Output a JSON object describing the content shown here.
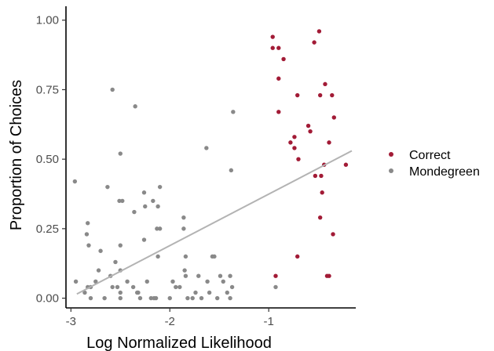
{
  "chart_data": {
    "type": "scatter",
    "title": "",
    "xlabel": "Log Normalized Likelihood",
    "ylabel": "Proportion of Choices",
    "xlim": [
      -3.05,
      -0.12
    ],
    "ylim": [
      -0.035,
      1.05
    ],
    "xticks": [
      -3,
      -2,
      -1
    ],
    "xtick_labels": [
      "-3",
      "-2",
      "-1"
    ],
    "yticks": [
      0,
      0.25,
      0.5,
      0.75,
      1
    ],
    "ytick_labels": [
      "0.00",
      "0.25",
      "0.50",
      "0.75",
      "1.00"
    ],
    "grid": false,
    "legend_position": "right",
    "trend_line": {
      "x": [
        -2.94,
        -0.16
      ],
      "y": [
        0.015,
        0.53
      ],
      "color": "#b3b3b3"
    },
    "series": [
      {
        "name": "Correct",
        "color": "#a21b36",
        "points": [
          {
            "x": -0.96,
            "y": 0.94
          },
          {
            "x": -0.96,
            "y": 0.9
          },
          {
            "x": -0.9,
            "y": 0.9
          },
          {
            "x": -0.85,
            "y": 0.86
          },
          {
            "x": -0.9,
            "y": 0.79
          },
          {
            "x": -0.9,
            "y": 0.67
          },
          {
            "x": -0.93,
            "y": 0.08
          },
          {
            "x": -0.78,
            "y": 0.56
          },
          {
            "x": -0.74,
            "y": 0.58
          },
          {
            "x": -0.74,
            "y": 0.54
          },
          {
            "x": -0.71,
            "y": 0.73
          },
          {
            "x": -0.7,
            "y": 0.5
          },
          {
            "x": -0.71,
            "y": 0.15
          },
          {
            "x": -0.6,
            "y": 0.62
          },
          {
            "x": -0.58,
            "y": 0.6
          },
          {
            "x": -0.54,
            "y": 0.92
          },
          {
            "x": -0.49,
            "y": 0.96
          },
          {
            "x": -0.53,
            "y": 0.44
          },
          {
            "x": -0.47,
            "y": 0.44
          },
          {
            "x": -0.48,
            "y": 0.73
          },
          {
            "x": -0.43,
            "y": 0.77
          },
          {
            "x": -0.44,
            "y": 0.48
          },
          {
            "x": -0.46,
            "y": 0.38
          },
          {
            "x": -0.48,
            "y": 0.29
          },
          {
            "x": -0.39,
            "y": 0.56
          },
          {
            "x": -0.41,
            "y": 0.08
          },
          {
            "x": -0.39,
            "y": 0.08
          },
          {
            "x": -0.36,
            "y": 0.73
          },
          {
            "x": -0.34,
            "y": 0.65
          },
          {
            "x": -0.35,
            "y": 0.23
          },
          {
            "x": -0.22,
            "y": 0.48
          }
        ]
      },
      {
        "name": "Mondegreen",
        "color": "#898989",
        "points": [
          {
            "x": -2.96,
            "y": 0.42
          },
          {
            "x": -2.95,
            "y": 0.06
          },
          {
            "x": -2.86,
            "y": 0.02
          },
          {
            "x": -2.83,
            "y": 0.27
          },
          {
            "x": -2.84,
            "y": 0.23
          },
          {
            "x": -2.82,
            "y": 0.19
          },
          {
            "x": -2.83,
            "y": 0.04
          },
          {
            "x": -2.8,
            "y": 0.04
          },
          {
            "x": -2.8,
            "y": 0.0
          },
          {
            "x": -2.75,
            "y": 0.06
          },
          {
            "x": -2.72,
            "y": 0.1
          },
          {
            "x": -2.7,
            "y": 0.17
          },
          {
            "x": -2.66,
            "y": 0.0
          },
          {
            "x": -2.63,
            "y": 0.4
          },
          {
            "x": -2.58,
            "y": 0.75
          },
          {
            "x": -2.6,
            "y": 0.08
          },
          {
            "x": -2.58,
            "y": 0.04
          },
          {
            "x": -2.53,
            "y": 0.04
          },
          {
            "x": -2.55,
            "y": 0.13
          },
          {
            "x": -2.5,
            "y": 0.52
          },
          {
            "x": -2.51,
            "y": 0.35
          },
          {
            "x": -2.48,
            "y": 0.35
          },
          {
            "x": -2.5,
            "y": 0.19
          },
          {
            "x": -2.5,
            "y": 0.1
          },
          {
            "x": -2.5,
            "y": 0.02
          },
          {
            "x": -2.5,
            "y": 0.0
          },
          {
            "x": -2.43,
            "y": 0.06
          },
          {
            "x": -2.35,
            "y": 0.69
          },
          {
            "x": -2.36,
            "y": 0.31
          },
          {
            "x": -2.37,
            "y": 0.04
          },
          {
            "x": -2.33,
            "y": 0.02
          },
          {
            "x": -2.3,
            "y": 0.0
          },
          {
            "x": -2.32,
            "y": 0.02
          },
          {
            "x": -2.26,
            "y": 0.38
          },
          {
            "x": -2.25,
            "y": 0.33
          },
          {
            "x": -2.26,
            "y": 0.21
          },
          {
            "x": -2.23,
            "y": 0.06
          },
          {
            "x": -2.19,
            "y": 0.0
          },
          {
            "x": -2.17,
            "y": 0.35
          },
          {
            "x": -2.12,
            "y": 0.33
          },
          {
            "x": -2.1,
            "y": 0.4
          },
          {
            "x": -2.13,
            "y": 0.25
          },
          {
            "x": -2.1,
            "y": 0.25
          },
          {
            "x": -2.12,
            "y": 0.15
          },
          {
            "x": -2.14,
            "y": 0.0
          },
          {
            "x": -2.16,
            "y": 0.0
          },
          {
            "x": -2.0,
            "y": 0.0
          },
          {
            "x": -1.97,
            "y": 0.06
          },
          {
            "x": -1.94,
            "y": 0.04
          },
          {
            "x": -1.9,
            "y": 0.04
          },
          {
            "x": -1.86,
            "y": 0.29
          },
          {
            "x": -1.86,
            "y": 0.25
          },
          {
            "x": -1.84,
            "y": 0.15
          },
          {
            "x": -1.85,
            "y": 0.1
          },
          {
            "x": -1.84,
            "y": 0.08
          },
          {
            "x": -1.82,
            "y": 0.0
          },
          {
            "x": -1.77,
            "y": 0.0
          },
          {
            "x": -1.74,
            "y": 0.02
          },
          {
            "x": -1.71,
            "y": 0.08
          },
          {
            "x": -1.68,
            "y": 0.0
          },
          {
            "x": -1.63,
            "y": 0.54
          },
          {
            "x": -1.62,
            "y": 0.06
          },
          {
            "x": -1.6,
            "y": 0.02
          },
          {
            "x": -1.57,
            "y": 0.15
          },
          {
            "x": -1.55,
            "y": 0.15
          },
          {
            "x": -1.52,
            "y": 0.0
          },
          {
            "x": -1.49,
            "y": 0.08
          },
          {
            "x": -1.46,
            "y": 0.06
          },
          {
            "x": -1.42,
            "y": 0.02
          },
          {
            "x": -1.38,
            "y": 0.46
          },
          {
            "x": -1.36,
            "y": 0.67
          },
          {
            "x": -1.39,
            "y": 0.08
          },
          {
            "x": -1.37,
            "y": 0.04
          },
          {
            "x": -1.39,
            "y": 0.0
          },
          {
            "x": -0.93,
            "y": 0.04
          }
        ]
      }
    ]
  }
}
